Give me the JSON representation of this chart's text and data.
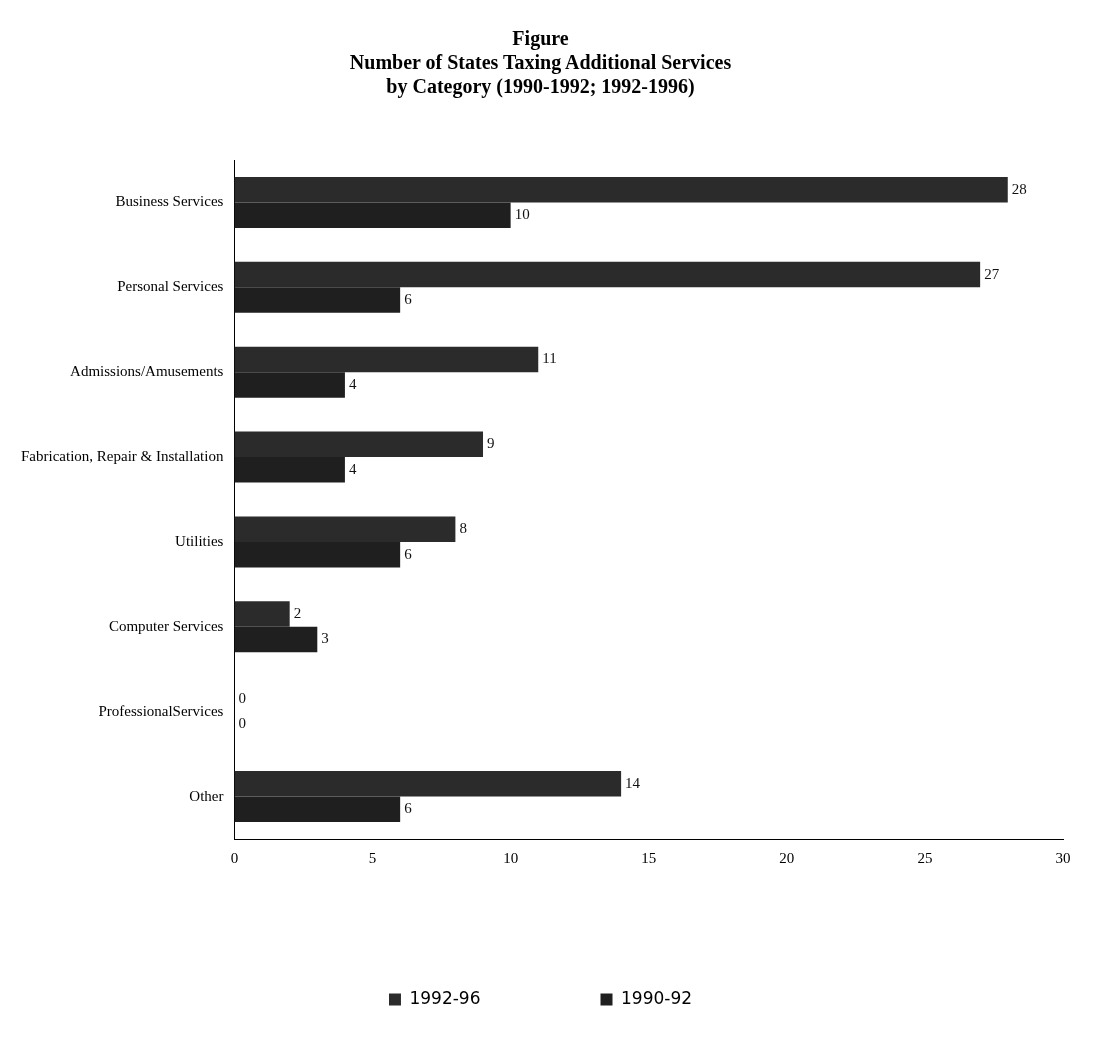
{
  "chart_data": {
    "type": "bar",
    "orientation": "horizontal",
    "title": "Figure\nNumber of States Taxing Additional Services\nby Category (1990-1992; 1992-1996)",
    "categories": [
      "Business Services",
      "Personal Services",
      "Admissions/Amusements",
      "Fabrication, Repair & Installation",
      "Utilities",
      "Computer Services",
      "ProfessionalServices",
      "Other"
    ],
    "series": [
      {
        "name": "1992-96",
        "color": "#2b2b2b",
        "values": [
          28,
          27,
          11,
          9,
          8,
          2,
          0,
          14
        ]
      },
      {
        "name": "1990-92",
        "color": "#1f1f1f",
        "values": [
          10,
          6,
          4,
          4,
          6,
          3,
          0,
          6
        ]
      }
    ],
    "xlim": [
      0,
      30
    ],
    "xticks": [
      0,
      5,
      10,
      15,
      20,
      25,
      30
    ],
    "data_labels": true,
    "grid": false,
    "legend": "bottom"
  }
}
